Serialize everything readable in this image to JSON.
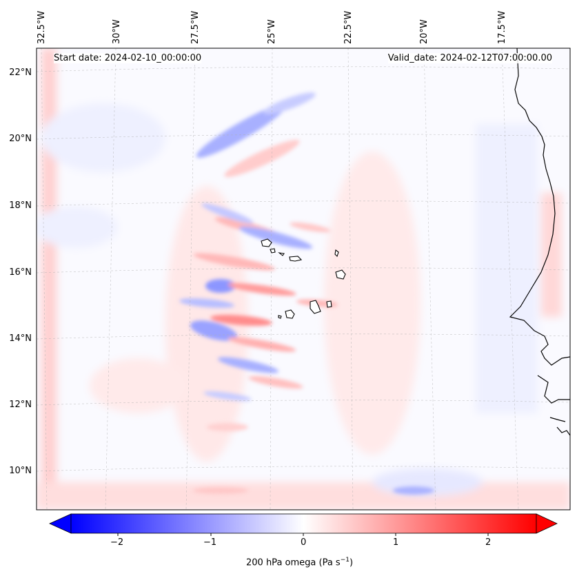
{
  "annotations": {
    "start_date": "Start date: 2024-02-10_00:00:00",
    "valid_date": "Valid_date: 2024-02-12T07:00:00.00"
  },
  "lon_labels": [
    "32.5°W",
    "30°W",
    "27.5°W",
    "25°W",
    "22.5°W",
    "20°W",
    "17.5°W"
  ],
  "lat_labels": [
    "22°N",
    "20°N",
    "18°N",
    "16°N",
    "14°N",
    "12°N",
    "10°N"
  ],
  "colorbar": {
    "ticks": [
      "−2",
      "−1",
      "0",
      "1",
      "2"
    ],
    "label": "200 hPa omega (Pa s",
    "label_sup": "−1",
    "label_end": ")",
    "range": [
      -2.75,
      2.75
    ],
    "cmap": "bwr",
    "min_color": "#0000ff",
    "mid_color": "#ffffff",
    "max_color": "#ff0000"
  },
  "colors": {
    "coast": "#000000",
    "grid": "#b0b0b0",
    "positive": "#ff0000",
    "negative": "#0000ff"
  }
}
